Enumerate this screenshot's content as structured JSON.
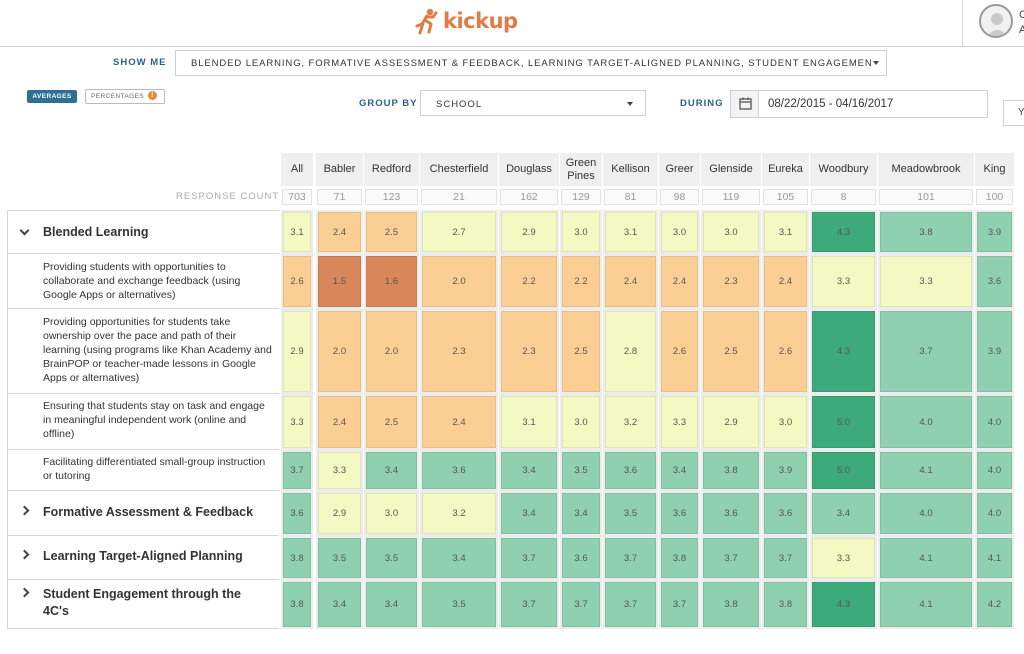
{
  "header": {
    "logo_text": "kickup",
    "brand_color": "#e07b45",
    "user_initial": "C",
    "user_initial2": "A"
  },
  "filters": {
    "show_me_label": "SHOW ME",
    "show_me_value": "BLENDED LEARNING, FORMATIVE ASSESSMENT & FEEDBACK, LEARNING TARGET-ALIGNED PLANNING, STUDENT ENGAGEMENT T",
    "averages_label": "AVERAGES",
    "percentages_label": "PERCENTAGES",
    "info_glyph": "!",
    "group_by_label": "GROUP BY",
    "group_by_value": "SCHOOL",
    "during_label": "DURING",
    "date_range": "08/22/2015 - 04/16/2017",
    "edge_glyph": "Y"
  },
  "table": {
    "response_count_label": "RESPONSE COUNT",
    "columns": [
      {
        "name": "All",
        "count": "703"
      },
      {
        "name": "Babler",
        "count": "71"
      },
      {
        "name": "Redford",
        "count": "123"
      },
      {
        "name": "Chesterfield",
        "count": "21"
      },
      {
        "name": "Douglass",
        "count": "162"
      },
      {
        "name": "Green Pines",
        "count": "129"
      },
      {
        "name": "Kellison",
        "count": "81"
      },
      {
        "name": "Greer",
        "count": "98"
      },
      {
        "name": "Glenside",
        "count": "119"
      },
      {
        "name": "Eureka",
        "count": "105"
      },
      {
        "name": "Woodbury",
        "count": "8"
      },
      {
        "name": "Meadowbrook",
        "count": "101"
      },
      {
        "name": "King",
        "count": "100"
      }
    ],
    "rows": [
      {
        "label": "Blended Learning",
        "type": "category",
        "expanded": true,
        "values": [
          "3.1",
          "2.4",
          "2.5",
          "2.7",
          "2.9",
          "3.0",
          "3.1",
          "3.0",
          "3.0",
          "3.1",
          "4.3",
          "3.8",
          "3.9"
        ]
      },
      {
        "label": "Providing students with opportunities to collaborate and exchange feedback (using Google Apps or alternatives)",
        "type": "item",
        "values": [
          "2.6",
          "1.5",
          "1.6",
          "2.0",
          "2.2",
          "2.2",
          "2.4",
          "2.4",
          "2.3",
          "2.4",
          "3.3",
          "3.3",
          "3.6"
        ]
      },
      {
        "label": "Providing opportunities for students take ownership over the pace and path of their learning (using programs like Khan Academy and BrainPOP or teacher-made lessons in Google Apps or alternatives)",
        "type": "item",
        "values": [
          "2.9",
          "2.0",
          "2.0",
          "2.3",
          "2.3",
          "2.5",
          "2.8",
          "2.6",
          "2.5",
          "2.6",
          "4.3",
          "3.7",
          "3.9"
        ]
      },
      {
        "label": "Ensuring that students stay on task and engage in meaningful independent work (online and offline)",
        "type": "item",
        "values": [
          "3.3",
          "2.4",
          "2.5",
          "2.4",
          "3.1",
          "3.0",
          "3.2",
          "3.3",
          "2.9",
          "3.0",
          "5.0",
          "4.0",
          "4.0"
        ]
      },
      {
        "label": "Facilitating differentiated small-group instruction or tutoring",
        "type": "item",
        "values": [
          "3.7",
          "3.3",
          "3.4",
          "3.6",
          "3.4",
          "3.5",
          "3.6",
          "3.4",
          "3.8",
          "3.9",
          "5.0",
          "4.1",
          "4.0"
        ]
      },
      {
        "label": "Formative Assessment & Feedback",
        "type": "category",
        "expanded": false,
        "values": [
          "3.6",
          "2.9",
          "3.0",
          "3.2",
          "3.4",
          "3.4",
          "3.5",
          "3.6",
          "3.6",
          "3.6",
          "3.4",
          "4.0",
          "4.0"
        ]
      },
      {
        "label": "Learning Target-Aligned Planning",
        "type": "category",
        "expanded": false,
        "values": [
          "3.8",
          "3.5",
          "3.5",
          "3.4",
          "3.7",
          "3.6",
          "3.7",
          "3.8",
          "3.7",
          "3.7",
          "3.3",
          "4.1",
          "4.1"
        ]
      },
      {
        "label": "Student Engagement through the 4C's",
        "type": "category",
        "expanded": false,
        "values": [
          "3.8",
          "3.4",
          "3.4",
          "3.5",
          "3.7",
          "3.7",
          "3.7",
          "3.7",
          "3.8",
          "3.8",
          "4.3",
          "4.1",
          "4.2"
        ]
      }
    ],
    "colors": {
      "low": "#d9875a",
      "mid_low": "#fbcf93",
      "mid": "#f4f8c2",
      "high": "#8fd0b0",
      "top": "#3daa7c"
    }
  }
}
